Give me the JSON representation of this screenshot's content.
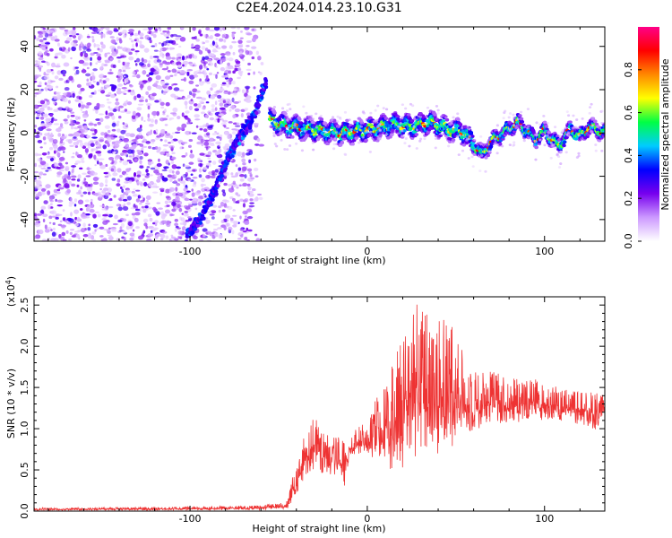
{
  "title": "C2E4.2024.014.23.10.G31",
  "chart_data": [
    {
      "type": "heatmap",
      "xlabel": "Height of straight line (km)",
      "ylabel": "Frequency (Hz)",
      "xlim": [
        -188,
        134
      ],
      "ylim": [
        -50,
        49
      ],
      "xticks": [
        -100,
        0,
        100
      ],
      "xtick_labels": [
        "-100",
        "0",
        "100"
      ],
      "yticks": [
        -40,
        -20,
        0,
        20,
        40
      ],
      "ytick_labels": [
        "-40",
        "-20",
        "0",
        "20",
        "40"
      ],
      "colorbar": {
        "label": "Normalized spectral amplitude",
        "range": [
          0.0,
          1.0
        ],
        "ticks": [
          0.0,
          0.2,
          0.4,
          0.6,
          0.8
        ],
        "tick_labels": [
          "0.0",
          "0.2",
          "0.4",
          "0.6",
          "0.8"
        ],
        "colormap": [
          "#ffffff",
          "#cc99ff",
          "#7700ee",
          "#0000ff",
          "#00ccff",
          "#00ff44",
          "#ffff00",
          "#ff8800",
          "#ff0000",
          "#ff0088"
        ]
      },
      "features": {
        "noise_region_x": [
          -188,
          -58
        ],
        "diagonal_trace": [
          [
            -102,
            -48
          ],
          [
            -93,
            -38
          ],
          [
            -85,
            -25
          ],
          [
            -79,
            -12
          ],
          [
            -72,
            -2
          ],
          [
            -64,
            8
          ],
          [
            -57,
            24
          ]
        ],
        "center_trace": [
          [
            -55,
            6
          ],
          [
            -45,
            3
          ],
          [
            -35,
            2
          ],
          [
            -25,
            1
          ],
          [
            -15,
            0
          ],
          [
            -5,
            1
          ],
          [
            5,
            2
          ],
          [
            15,
            4
          ],
          [
            25,
            3
          ],
          [
            35,
            5
          ],
          [
            45,
            2
          ],
          [
            55,
            0
          ],
          [
            65,
            -10
          ],
          [
            70,
            -4
          ],
          [
            80,
            2
          ],
          [
            85,
            5
          ],
          [
            95,
            -3
          ],
          [
            100,
            1
          ],
          [
            108,
            -6
          ],
          [
            115,
            2
          ],
          [
            120,
            -2
          ],
          [
            125,
            3
          ],
          [
            134,
            0
          ]
        ]
      }
    },
    {
      "type": "line",
      "xlabel": "Height of straight line (km)",
      "ylabel": "SNR (10 * v/v)",
      "y_multiplier": "(x10",
      "y_multiplier_exp": "4",
      "xlim": [
        -188,
        134
      ],
      "ylim": [
        0,
        2.6
      ],
      "xticks": [
        -100,
        0,
        100
      ],
      "xtick_labels": [
        "-100",
        "0",
        "100"
      ],
      "yticks": [
        0,
        0.5,
        1.0,
        1.5,
        2.0,
        2.5
      ],
      "ytick_labels": [
        "0.0",
        "0.5",
        "1.0",
        "1.5",
        "2.0",
        "2.5"
      ],
      "series": [
        {
          "color": "#ee3333",
          "envelope_x": [
            -188,
            -100,
            -60,
            -45,
            -43,
            -40,
            -37,
            -34,
            -30,
            -26,
            -20,
            -15,
            -13,
            -10,
            -5,
            0,
            5,
            10,
            15,
            20,
            25,
            30,
            35,
            40,
            45,
            50,
            55,
            60,
            70,
            80,
            90,
            100,
            110,
            120,
            130,
            134
          ],
          "envelope_hi": [
            0.04,
            0.05,
            0.07,
            0.12,
            0.35,
            0.6,
            0.85,
            0.98,
            1.2,
            0.95,
            0.9,
            0.95,
            0.85,
            0.85,
            1.05,
            1.05,
            1.4,
            1.65,
            1.9,
            2.05,
            2.6,
            2.5,
            2.4,
            2.35,
            2.35,
            2.2,
            1.85,
            1.75,
            1.7,
            1.65,
            1.6,
            1.6,
            1.5,
            1.45,
            1.45,
            1.4
          ],
          "envelope_lo": [
            0.0,
            0.0,
            0.0,
            0.0,
            0.03,
            0.08,
            0.2,
            0.3,
            0.3,
            0.3,
            0.25,
            0.25,
            0.1,
            0.6,
            0.6,
            0.6,
            0.4,
            0.2,
            0.1,
            0.05,
            0.05,
            0.1,
            0.1,
            0.2,
            0.3,
            0.45,
            0.65,
            0.75,
            0.85,
            0.9,
            0.95,
            0.95,
            0.95,
            0.95,
            0.85,
            0.95
          ]
        }
      ]
    }
  ]
}
